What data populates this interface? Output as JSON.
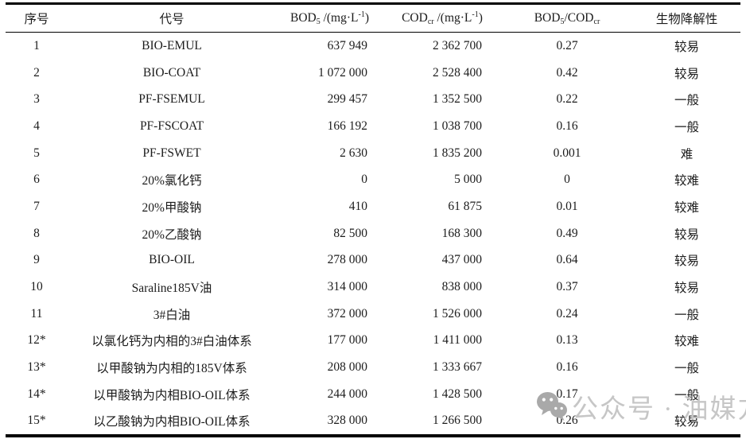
{
  "table": {
    "headers": {
      "no": "序号",
      "code": "代号",
      "bod": {
        "base": "BOD",
        "sub": "5",
        "mid": " /(mg·L",
        "sup": "-1",
        "end": ")"
      },
      "cod": {
        "base": "COD",
        "sub": "cr",
        "mid": " /(mg·L",
        "sup": "-1",
        "end": ")"
      },
      "ratio": {
        "base": "BOD",
        "sub": "5",
        "mid": "/COD",
        "sub2": "cr"
      },
      "bio": "生物降解性"
    },
    "rows": [
      {
        "no": "1",
        "code": "BIO-EMUL",
        "bod": "637 949",
        "cod": "2 362 700",
        "ratio": "0.27",
        "bio": "较易"
      },
      {
        "no": "2",
        "code": "BIO-COAT",
        "bod": "1 072 000",
        "cod": "2 528 400",
        "ratio": "0.42",
        "bio": "较易"
      },
      {
        "no": "3",
        "code": "PF-FSEMUL",
        "bod": "299 457",
        "cod": "1 352 500",
        "ratio": "0.22",
        "bio": "一般"
      },
      {
        "no": "4",
        "code": "PF-FSCOAT",
        "bod": "166 192",
        "cod": "1 038 700",
        "ratio": "0.16",
        "bio": "一般"
      },
      {
        "no": "5",
        "code": "PF-FSWET",
        "bod": "2 630",
        "cod": "1 835 200",
        "ratio": "0.001",
        "bio": "难"
      },
      {
        "no": "6",
        "code": "20%氯化钙",
        "bod": "0",
        "cod": "5 000",
        "ratio": "0",
        "bio": "较难"
      },
      {
        "no": "7",
        "code": "20%甲酸钠",
        "bod": "410",
        "cod": "61 875",
        "ratio": "0.01",
        "bio": "较难"
      },
      {
        "no": "8",
        "code": "20%乙酸钠",
        "bod": "82 500",
        "cod": "168 300",
        "ratio": "0.49",
        "bio": "较易"
      },
      {
        "no": "9",
        "code": "BIO-OIL",
        "bod": "278 000",
        "cod": "437 000",
        "ratio": "0.64",
        "bio": "较易"
      },
      {
        "no": "10",
        "code": "Saraline185V油",
        "bod": "314 000",
        "cod": "838 000",
        "ratio": "0.37",
        "bio": "较易"
      },
      {
        "no": "11",
        "code": "3#白油",
        "bod": "372 000",
        "cod": "1 526 000",
        "ratio": "0.24",
        "bio": "一般"
      },
      {
        "no": "12*",
        "code": "以氯化钙为内相的3#白油体系",
        "bod": "177 000",
        "cod": "1 411 000",
        "ratio": "0.13",
        "bio": "较难"
      },
      {
        "no": "13*",
        "code": "以甲酸钠为内相的185V体系",
        "bod": "208 000",
        "cod": "1 333 667",
        "ratio": "0.16",
        "bio": "一般"
      },
      {
        "no": "14*",
        "code": "以甲酸钠为内相BIO-OIL体系",
        "bod": "244 000",
        "cod": "1 428 500",
        "ratio": "0.17",
        "bio": "一般"
      },
      {
        "no": "15*",
        "code": "以乙酸钠为内相BIO-OIL体系",
        "bod": "328 000",
        "cod": "1 266 500",
        "ratio": "0.26",
        "bio": "较易"
      }
    ]
  },
  "watermark": {
    "icon": "wechat-icon",
    "text": "公众号 · 油媒方",
    "text_color": "#c6c6c6",
    "icon_color": "#a9a9a9"
  }
}
